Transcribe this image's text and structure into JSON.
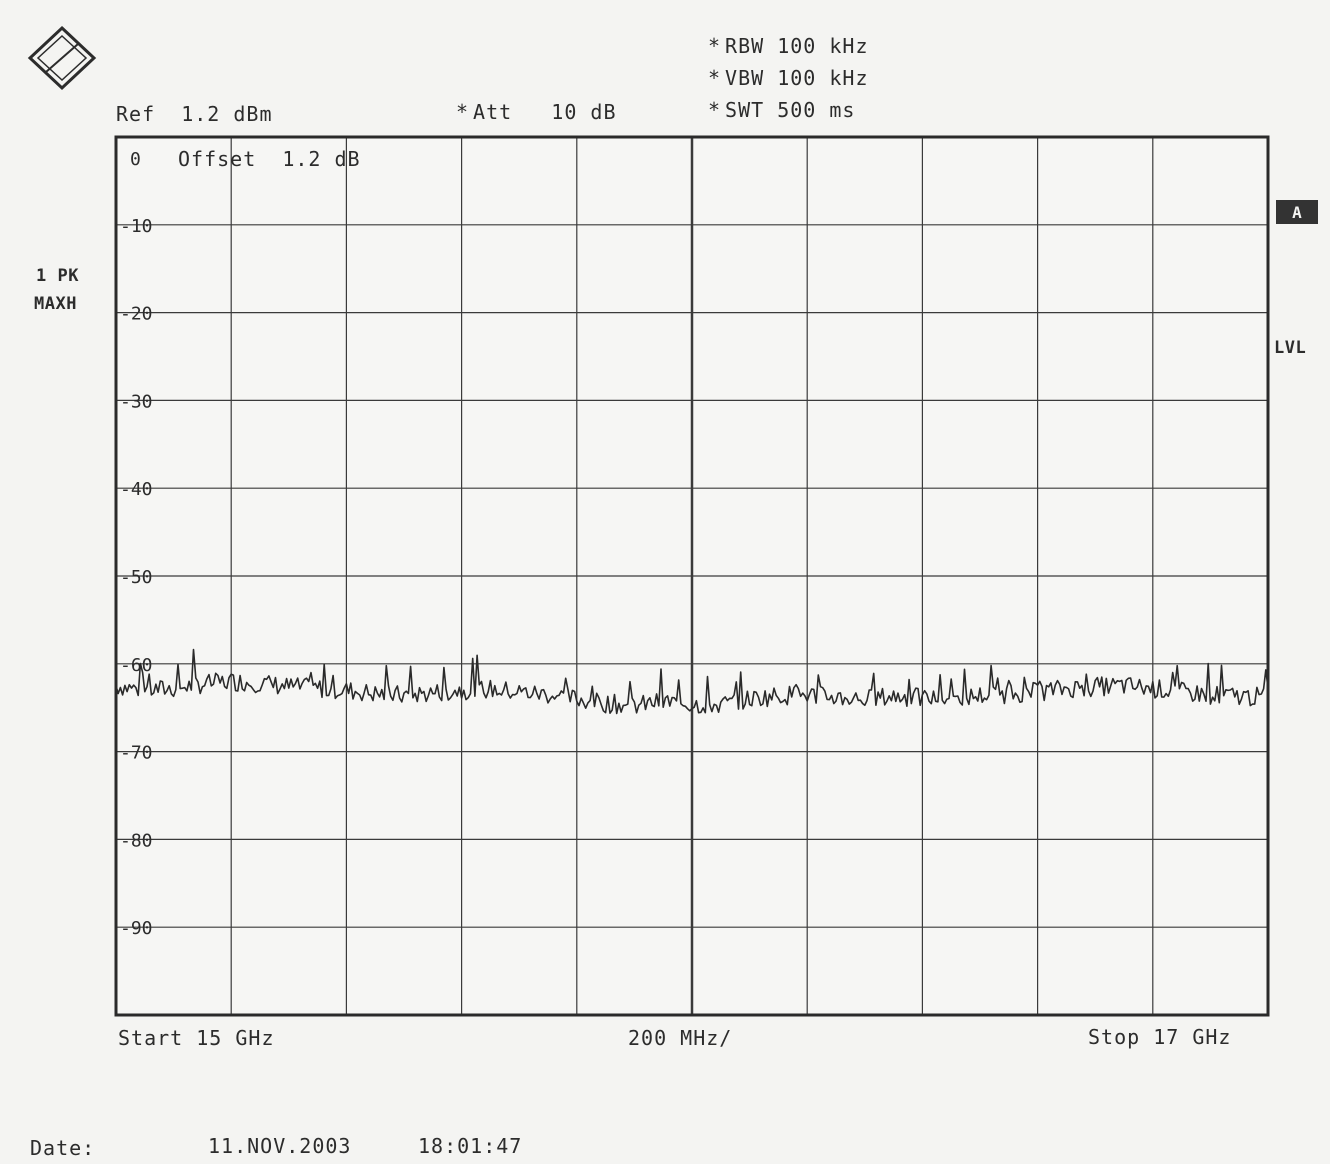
{
  "header": {
    "ref": "Ref  1.2 dBm",
    "att": "Att   10 dB",
    "rbw": "RBW 100 kHz",
    "vbw": "VBW 100 kHz",
    "swt": "SWT 500 ms",
    "star": "*"
  },
  "left_labels": {
    "trace_mode": "1 PK",
    "detector": "MAXH"
  },
  "right_labels": {
    "marker_a": "A",
    "lvl": "LVL"
  },
  "offset_label": "Offset  1.2 dB",
  "footer": {
    "start": "Start 15 GHz",
    "span": "200 MHz/",
    "stop": "Stop 17 GHz",
    "date_label": "Date:",
    "date_value": "11.NOV.2003",
    "time_value": "18:01:47"
  },
  "chart_data": {
    "type": "line",
    "title": "",
    "xlabel": "",
    "ylabel": "",
    "xlim": [
      15,
      17
    ],
    "ylim": [
      -100,
      0
    ],
    "grid": true,
    "y_ticks": [
      0,
      -10,
      -20,
      -30,
      -40,
      -50,
      -60,
      -70,
      -80,
      -90
    ],
    "y_tick_labels": [
      "0",
      "-10",
      "-20",
      "-30",
      "-40",
      "-50",
      "-60",
      "-70",
      "-80",
      "-90"
    ],
    "series": [
      {
        "x": [
          15.0,
          15.05,
          15.1,
          15.15,
          15.2,
          15.25,
          15.3,
          15.35,
          15.4,
          15.45,
          15.5,
          15.55,
          15.6,
          15.65,
          15.7,
          15.75,
          15.8,
          15.85,
          15.9,
          15.95,
          16.0,
          16.05,
          16.1,
          16.15,
          16.2,
          16.25,
          16.3,
          16.35,
          16.4,
          16.45,
          16.5,
          16.55,
          16.6,
          16.65,
          16.7,
          16.75,
          16.8,
          16.85,
          16.9,
          16.95,
          17.0
        ],
        "values": [
          -62.5,
          -63.0,
          -62.8,
          -62.3,
          -62.0,
          -62.2,
          -62.6,
          -62.8,
          -63.0,
          -63.4,
          -63.6,
          -63.3,
          -63.0,
          -62.9,
          -63.2,
          -63.5,
          -64.0,
          -64.5,
          -64.8,
          -64.3,
          -64.6,
          -64.7,
          -64.0,
          -63.6,
          -63.5,
          -63.8,
          -64.0,
          -63.7,
          -63.9,
          -64.0,
          -63.6,
          -63.4,
          -63.2,
          -62.8,
          -62.6,
          -62.5,
          -62.8,
          -63.2,
          -63.5,
          -63.7,
          -63.8
        ]
      }
    ]
  }
}
